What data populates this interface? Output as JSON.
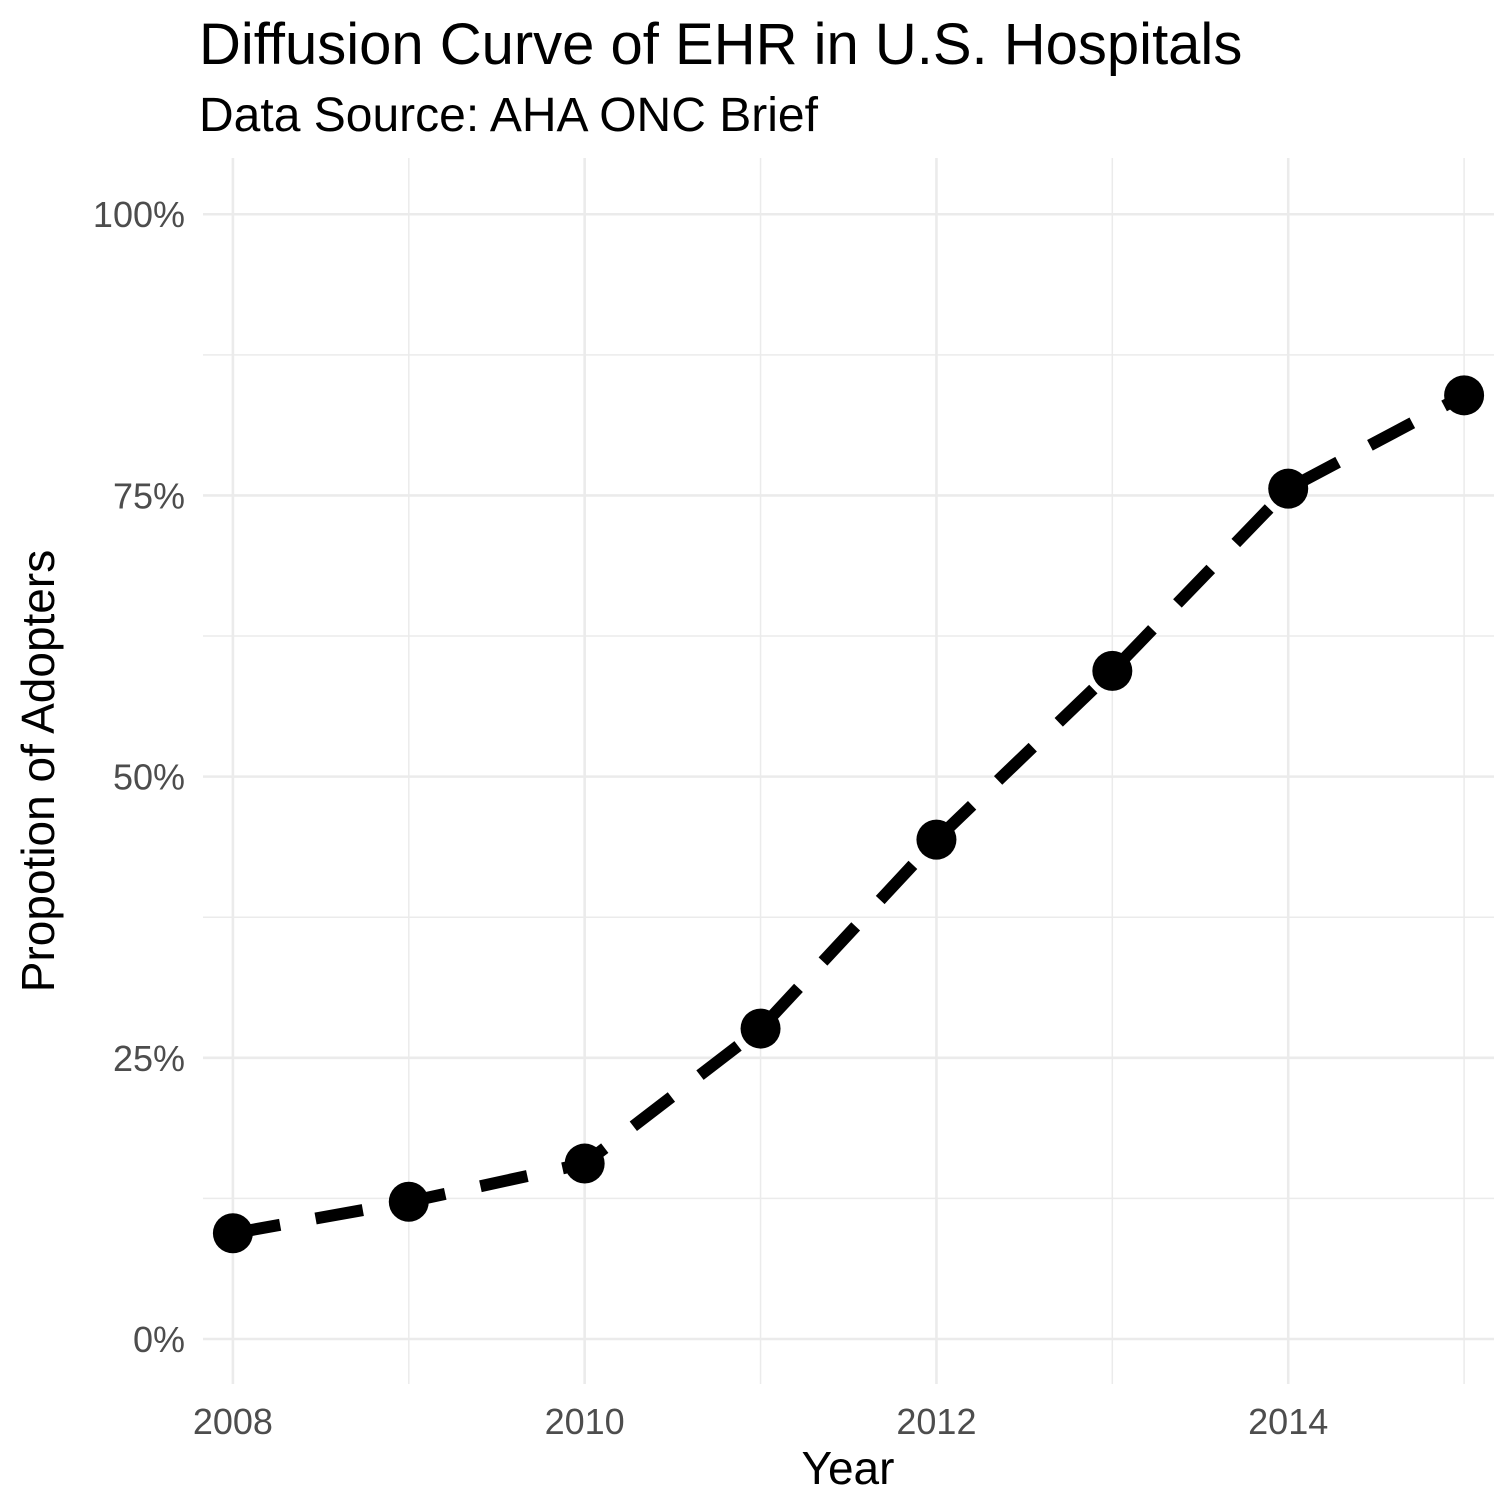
{
  "chart_data": {
    "type": "line",
    "title": "Diffusion Curve of EHR in U.S. Hospitals",
    "subtitle": "Data Source: AHA ONC Brief",
    "xlabel": "Year",
    "ylabel": "Propotion of Adopters",
    "x": [
      2008,
      2009,
      2010,
      2011,
      2012,
      2013,
      2014,
      2015
    ],
    "series": [
      {
        "values": [
          0.094,
          0.122,
          0.156,
          0.276,
          0.444,
          0.594,
          0.756,
          0.839
        ],
        "line_style": "dashed",
        "markers": true,
        "color": "#000000"
      }
    ],
    "xlim": [
      2007.83,
      2015.17
    ],
    "ylim": [
      -0.04,
      1.05
    ],
    "x_ticks": [
      2008,
      2010,
      2012,
      2014
    ],
    "x_tick_labels": [
      "2008",
      "2010",
      "2012",
      "2014"
    ],
    "y_ticks": [
      0,
      0.25,
      0.5,
      0.75,
      1.0
    ],
    "y_tick_labels": [
      "0%",
      "25%",
      "50%",
      "75%",
      "100%"
    ],
    "grid": true,
    "legend": "none",
    "colors": {
      "grid": "#ebebeb",
      "tick_text": "#4d4d4d",
      "text": "#000000",
      "line": "#000000"
    }
  }
}
